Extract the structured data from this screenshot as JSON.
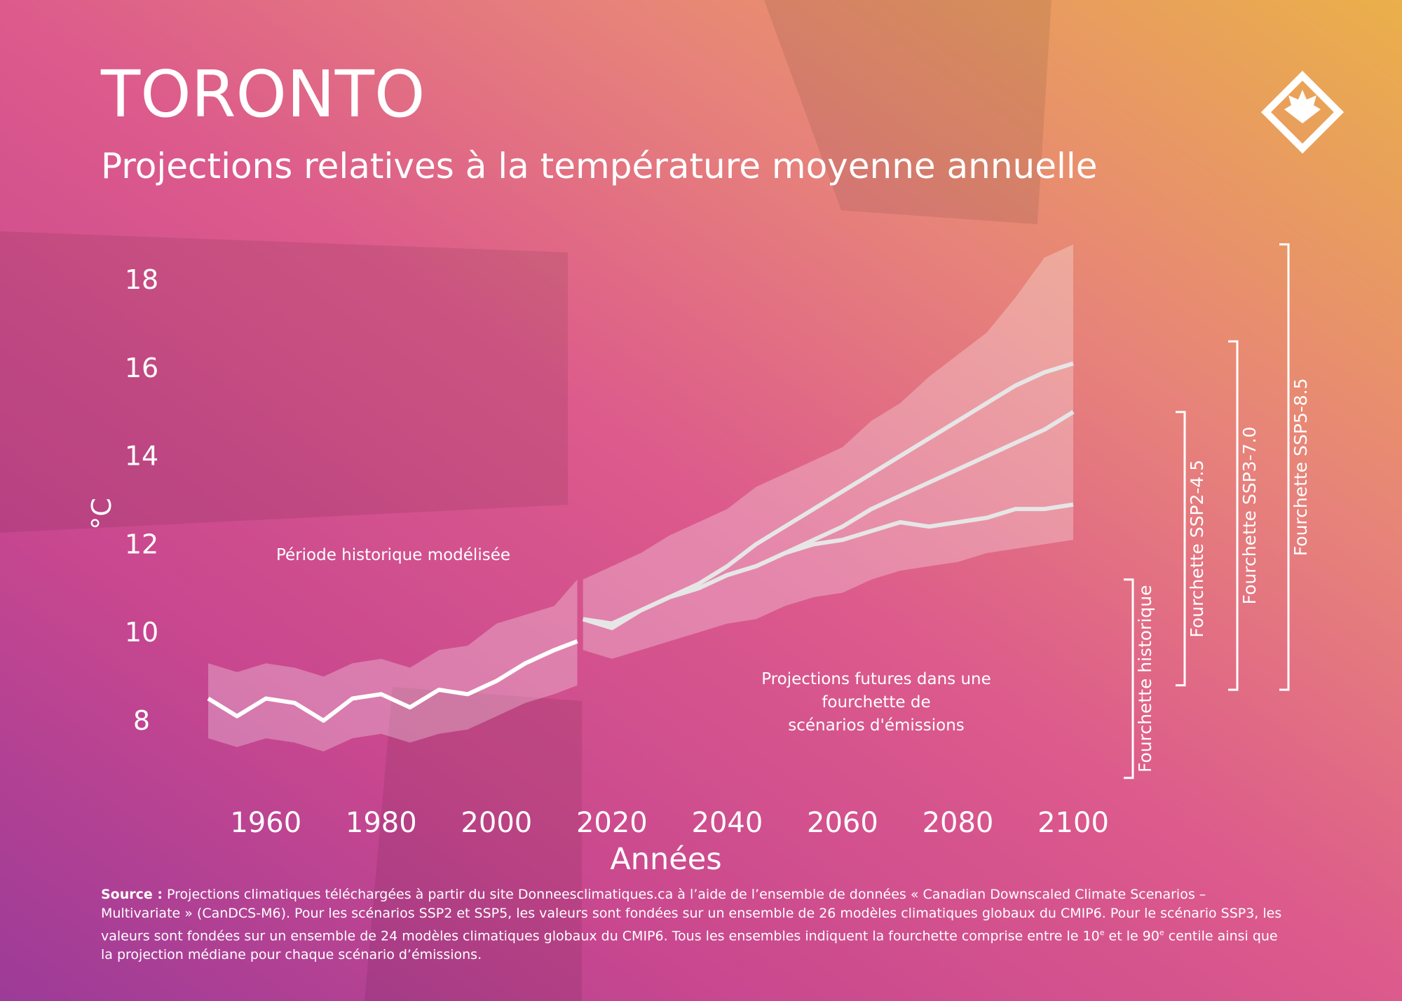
{
  "chart_data": {
    "type": "line",
    "title": "TORONTO",
    "subtitle": "Projections relatives à la température moyenne annuelle",
    "y_label": "°C",
    "x_label": "Années",
    "xlim": [
      1950,
      2100
    ],
    "ylim": [
      6.6,
      18.9
    ],
    "xticks": [
      1960,
      1980,
      2000,
      2020,
      2040,
      2060,
      2080,
      2100
    ],
    "yticks": [
      8,
      10,
      12,
      14,
      16,
      18
    ],
    "band_color": "#ffffff",
    "bands": [
      {
        "x": [
          1950,
          1955,
          1960,
          1965,
          1970,
          1975,
          1980,
          1985,
          1990,
          1995,
          2000,
          2005,
          2010,
          2014
        ],
        "low": [
          7.6,
          7.4,
          7.6,
          7.5,
          7.3,
          7.6,
          7.7,
          7.5,
          7.7,
          7.8,
          8.1,
          8.4,
          8.6,
          8.8
        ],
        "high": [
          9.3,
          9.1,
          9.3,
          9.2,
          9.0,
          9.3,
          9.4,
          9.2,
          9.6,
          9.7,
          10.2,
          10.4,
          10.6,
          11.2
        ]
      },
      {
        "x": [
          2015,
          2020,
          2025,
          2030,
          2035,
          2040,
          2045,
          2050,
          2055,
          2060,
          2065,
          2070,
          2075,
          2080,
          2085,
          2090,
          2095,
          2100
        ],
        "low": [
          9.6,
          9.4,
          9.6,
          9.8,
          10.0,
          10.2,
          10.3,
          10.6,
          10.8,
          10.9,
          11.2,
          11.4,
          11.5,
          11.6,
          11.8,
          11.9,
          12.0,
          12.1
        ],
        "high": [
          11.2,
          11.5,
          11.8,
          12.2,
          12.5,
          12.8,
          13.3,
          13.6,
          13.9,
          14.2,
          14.8,
          15.2,
          15.8,
          16.3,
          16.8,
          17.6,
          18.5,
          18.8
        ]
      }
    ],
    "series": [
      {
        "color": "#ffffff",
        "x": [
          1950,
          1955,
          1960,
          1965,
          1970,
          1975,
          1980,
          1985,
          1990,
          1995,
          2000,
          2005,
          2010,
          2014
        ],
        "values": [
          8.5,
          8.1,
          8.5,
          8.4,
          8.0,
          8.5,
          8.6,
          8.3,
          8.7,
          8.6,
          8.9,
          9.3,
          9.6,
          9.8
        ]
      },
      {
        "color": "#e6e6e6",
        "x": [
          2015,
          2020,
          2025,
          2030,
          2035,
          2040,
          2045,
          2050,
          2055,
          2060,
          2065,
          2070,
          2075,
          2080,
          2085,
          2090,
          2095,
          2100
        ],
        "values": [
          10.3,
          10.2,
          10.5,
          10.8,
          11.0,
          11.3,
          11.5,
          11.8,
          12.0,
          12.1,
          12.3,
          12.5,
          12.4,
          12.5,
          12.6,
          12.8,
          12.8,
          12.9
        ]
      },
      {
        "color": "#e6e6e6",
        "x": [
          2015,
          2020,
          2025,
          2030,
          2035,
          2040,
          2045,
          2050,
          2055,
          2060,
          2065,
          2070,
          2075,
          2080,
          2085,
          2090,
          2095,
          2100
        ],
        "values": [
          10.3,
          10.2,
          10.5,
          10.8,
          11.0,
          11.3,
          11.5,
          11.8,
          12.1,
          12.4,
          12.8,
          13.1,
          13.4,
          13.7,
          14.0,
          14.3,
          14.6,
          15.0
        ]
      },
      {
        "color": "#e6e6e6",
        "x": [
          2015,
          2020,
          2025,
          2030,
          2035,
          2040,
          2045,
          2050,
          2055,
          2060,
          2065,
          2070,
          2075,
          2080,
          2085,
          2090,
          2095,
          2100
        ],
        "values": [
          10.3,
          10.1,
          10.5,
          10.8,
          11.1,
          11.5,
          12.0,
          12.4,
          12.8,
          13.2,
          13.6,
          14.0,
          14.4,
          14.8,
          15.2,
          15.6,
          15.9,
          16.1
        ]
      }
    ],
    "annotations": [
      {
        "lines": [
          "Période historique modélisée"
        ]
      },
      {
        "lines": [
          "Projections futures dans une",
          "fourchette de",
          "scénarios d'émissions"
        ]
      }
    ],
    "ranges": [
      {
        "label": "Fourchette historique",
        "low": 6.7,
        "high": 11.2
      },
      {
        "label": "Fourchette SSP2-4.5",
        "low": 8.8,
        "high": 15.0
      },
      {
        "label": "Fourchette SSP3-7.0",
        "low": 8.7,
        "high": 16.6
      },
      {
        "label": "Fourchette SSP5-8.5",
        "low": 8.7,
        "high": 18.8
      }
    ]
  },
  "source": {
    "label": "Source :",
    "segments": [
      " Projections climatiques téléchargées à partir du site Donneesclimatiques.ca à l’aide de l’ensemble de données « Canadian Downscaled Climate Scenarios – Multivariate » (CanDCS-M6). Pour les scénarios SSP2 et SSP5, les valeurs sont fondées sur un ensemble de 26 modèles climatiques globaux du CMIP6. Pour le scénario SSP3, les valeurs sont fondées sur un ensemble de 24 modèles climatiques globaux du CMIP6. Tous les ensembles indiquent la fourchette comprise entre le 10",
      "e",
      " et le 90",
      "e",
      " centile ainsi que la projection médiane pour chaque scénario d’émissions."
    ]
  }
}
